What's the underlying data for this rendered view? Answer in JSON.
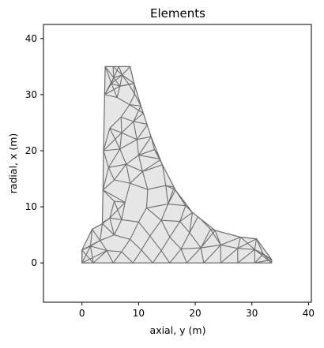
{
  "chart_data": {
    "type": "mesh",
    "title": "Elements",
    "xlabel": "axial, y (m)",
    "ylabel": "radial, x (m)",
    "xlim": [
      -6.8,
      40.5
    ],
    "ylim": [
      -7,
      42.5
    ],
    "xticks": [
      0,
      10,
      20,
      30,
      40
    ],
    "yticks": [
      0,
      10,
      20,
      30,
      40
    ],
    "grid": false,
    "legend": "none",
    "colors": {
      "fill": "#e6e6e6",
      "edge": "#6e6e6e"
    },
    "outline": [
      [
        0,
        0
      ],
      [
        33.5,
        0
      ],
      [
        33.5,
        0.6
      ],
      [
        30.8,
        4.3
      ],
      [
        28,
        4.6
      ],
      [
        23.5,
        5.8
      ],
      [
        19.5,
        9
      ],
      [
        16.5,
        13
      ],
      [
        14.2,
        17.5
      ],
      [
        12.2,
        22.5
      ],
      [
        10.4,
        28
      ],
      [
        9.2,
        32
      ],
      [
        8.5,
        35
      ],
      [
        4.1,
        35
      ],
      [
        4.0,
        30
      ],
      [
        3.8,
        20
      ],
      [
        3.7,
        13
      ],
      [
        3.6,
        7
      ],
      [
        1.8,
        6
      ],
      [
        0,
        2.3
      ]
    ],
    "nodes": [
      [
        0,
        0
      ],
      [
        2,
        0
      ],
      [
        5.5,
        0
      ],
      [
        9,
        0
      ],
      [
        12.5,
        0
      ],
      [
        15.5,
        0
      ],
      [
        18.5,
        0
      ],
      [
        21.5,
        0
      ],
      [
        24.5,
        0
      ],
      [
        27.5,
        0
      ],
      [
        30.5,
        0
      ],
      [
        33.5,
        0
      ],
      [
        33.5,
        0.6
      ],
      [
        30.8,
        4.3
      ],
      [
        28,
        4.6
      ],
      [
        23.5,
        5.8
      ],
      [
        19.5,
        9
      ],
      [
        16.5,
        13
      ],
      [
        14.2,
        17.5
      ],
      [
        12.2,
        22.5
      ],
      [
        10.4,
        28
      ],
      [
        9.2,
        32
      ],
      [
        8.5,
        35
      ],
      [
        4.1,
        35
      ],
      [
        4.0,
        30
      ],
      [
        3.8,
        20
      ],
      [
        3.7,
        13
      ],
      [
        3.6,
        7
      ],
      [
        1.8,
        6
      ],
      [
        0,
        2.3
      ],
      [
        5.5,
        35
      ],
      [
        6.5,
        35
      ],
      [
        7.1,
        33.5
      ],
      [
        5.6,
        33
      ],
      [
        5.2,
        32
      ],
      [
        6.7,
        31.5
      ],
      [
        8.3,
        31.8
      ],
      [
        6.2,
        29.5
      ],
      [
        8.4,
        28.2
      ],
      [
        9.3,
        30.1
      ],
      [
        6.9,
        26
      ],
      [
        9.1,
        25.2
      ],
      [
        10.8,
        26.7
      ],
      [
        4.9,
        24
      ],
      [
        7,
        23.2
      ],
      [
        9.7,
        22
      ],
      [
        11.6,
        24.7
      ],
      [
        6.7,
        20.3
      ],
      [
        10,
        19.2
      ],
      [
        12.8,
        20.2
      ],
      [
        4.7,
        17
      ],
      [
        7.8,
        17.6
      ],
      [
        10.7,
        16.3
      ],
      [
        14,
        18.5
      ],
      [
        5.7,
        14.8
      ],
      [
        8.5,
        14.2
      ],
      [
        11.6,
        13.1
      ],
      [
        14.8,
        13.8
      ],
      [
        16.3,
        13.5
      ],
      [
        5.7,
        11
      ],
      [
        7.6,
        10.8
      ],
      [
        11.4,
        9.8
      ],
      [
        15.2,
        10.5
      ],
      [
        18.3,
        10.2
      ],
      [
        4.9,
        8
      ],
      [
        7,
        7.7
      ],
      [
        10,
        7.3
      ],
      [
        14,
        7.6
      ],
      [
        17.3,
        7.4
      ],
      [
        20.5,
        8.3
      ],
      [
        3.2,
        4
      ],
      [
        5.7,
        5
      ],
      [
        8.5,
        4.2
      ],
      [
        12,
        4.8
      ],
      [
        15.5,
        4.6
      ],
      [
        19,
        5.4
      ],
      [
        22.7,
        6
      ],
      [
        1.5,
        3
      ],
      [
        4.4,
        2.2
      ],
      [
        7,
        2
      ],
      [
        10.5,
        2.3
      ],
      [
        14,
        2.2
      ],
      [
        17.5,
        2.5
      ],
      [
        21,
        2.7
      ],
      [
        24.5,
        3.2
      ],
      [
        27.5,
        2.6
      ],
      [
        30.5,
        2.4
      ],
      [
        32,
        1.6
      ]
    ]
  }
}
